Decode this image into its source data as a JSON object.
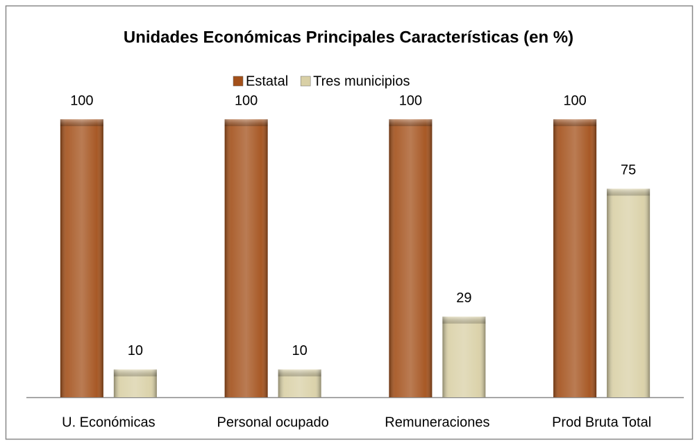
{
  "chart_data": {
    "type": "bar",
    "title": "Unidades Económicas  Principales Características (en %)",
    "categories": [
      "U. Económicas",
      "Personal ocupado",
      "Remuneraciones",
      "Prod Bruta Total"
    ],
    "series": [
      {
        "name": "Estatal",
        "color": "#a3501a",
        "values": [
          100,
          100,
          100,
          100
        ]
      },
      {
        "name": "Tres municipios",
        "color": "#d9d0a6",
        "values": [
          10,
          10,
          29,
          75
        ]
      }
    ]
  }
}
